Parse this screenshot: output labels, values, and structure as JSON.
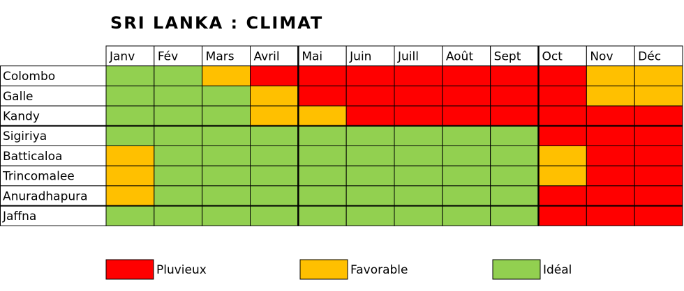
{
  "title": "SRI LANKA : CLIMAT",
  "table": {
    "columns": [
      "Janv",
      "Fév",
      "Mars",
      "Avril",
      "Mai",
      "Juin",
      "Juill",
      "Août",
      "Sept",
      "Oct",
      "Nov",
      "Déc"
    ],
    "rows": [
      {
        "label": "Colombo",
        "cells": [
          2,
          2,
          1,
          0,
          0,
          0,
          0,
          0,
          0,
          0,
          1,
          1
        ]
      },
      {
        "label": "Galle",
        "cells": [
          2,
          2,
          2,
          1,
          0,
          0,
          0,
          0,
          0,
          0,
          1,
          1
        ]
      },
      {
        "label": "Kandy",
        "cells": [
          2,
          2,
          2,
          1,
          1,
          0,
          0,
          0,
          0,
          0,
          0,
          0
        ]
      },
      {
        "label": "Sigiriya",
        "cells": [
          2,
          2,
          2,
          2,
          2,
          2,
          2,
          2,
          2,
          0,
          0,
          0
        ]
      },
      {
        "label": "Batticaloa",
        "cells": [
          1,
          2,
          2,
          2,
          2,
          2,
          2,
          2,
          2,
          1,
          0,
          0
        ]
      },
      {
        "label": "Trincomalee",
        "cells": [
          1,
          2,
          2,
          2,
          2,
          2,
          2,
          2,
          2,
          1,
          0,
          0
        ]
      },
      {
        "label": "Anuradhapura",
        "cells": [
          1,
          2,
          2,
          2,
          2,
          2,
          2,
          2,
          2,
          0,
          0,
          0
        ]
      },
      {
        "label": "Jaffna",
        "cells": [
          2,
          2,
          2,
          2,
          2,
          2,
          2,
          2,
          2,
          0,
          0,
          0
        ]
      }
    ]
  },
  "legend": [
    {
      "label": "Pluvieux",
      "color": "#ff0000"
    },
    {
      "label": "Favorable",
      "color": "#ffc000"
    },
    {
      "label": "Idéal",
      "color": "#92d050"
    }
  ]
}
